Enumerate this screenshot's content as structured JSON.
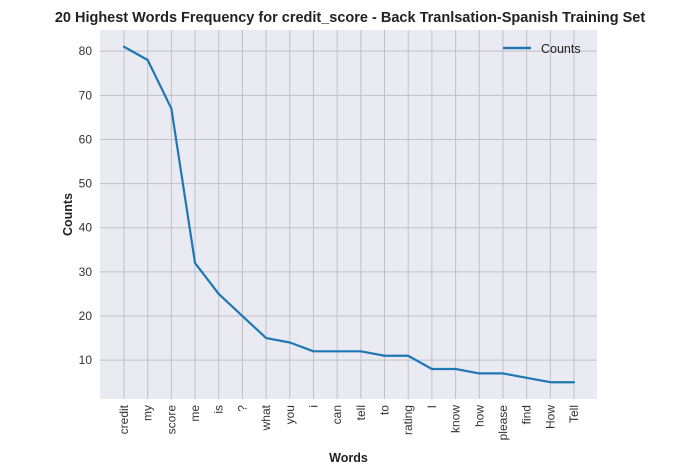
{
  "chart_data": {
    "type": "line",
    "title": "20 Highest Words Frequency for credit_score - Back Tranlsation-Spanish Training Set",
    "xlabel": "Words",
    "ylabel": "Counts",
    "categories": [
      "credit",
      "my",
      "score",
      "me",
      "is",
      "?",
      "what",
      "you",
      "i",
      "can",
      "tell",
      "to",
      "rating",
      "I",
      "know",
      "how",
      "please",
      "find",
      "How",
      "Tell"
    ],
    "series": [
      {
        "name": "Counts",
        "values": [
          81,
          78,
          67,
          32,
          25,
          20,
          15,
          14,
          12,
          12,
          12,
          11,
          11,
          8,
          8,
          7,
          7,
          6,
          5,
          5
        ]
      }
    ],
    "yticks": [
      10,
      20,
      30,
      40,
      50,
      60,
      70,
      80
    ],
    "ylim": [
      1.2,
      84.8
    ],
    "grid": true,
    "legend": "top-right",
    "colors": {
      "line": "#1f77b4",
      "plot_bg": "#eaeaf2",
      "grid": "#c0c0c8"
    }
  }
}
